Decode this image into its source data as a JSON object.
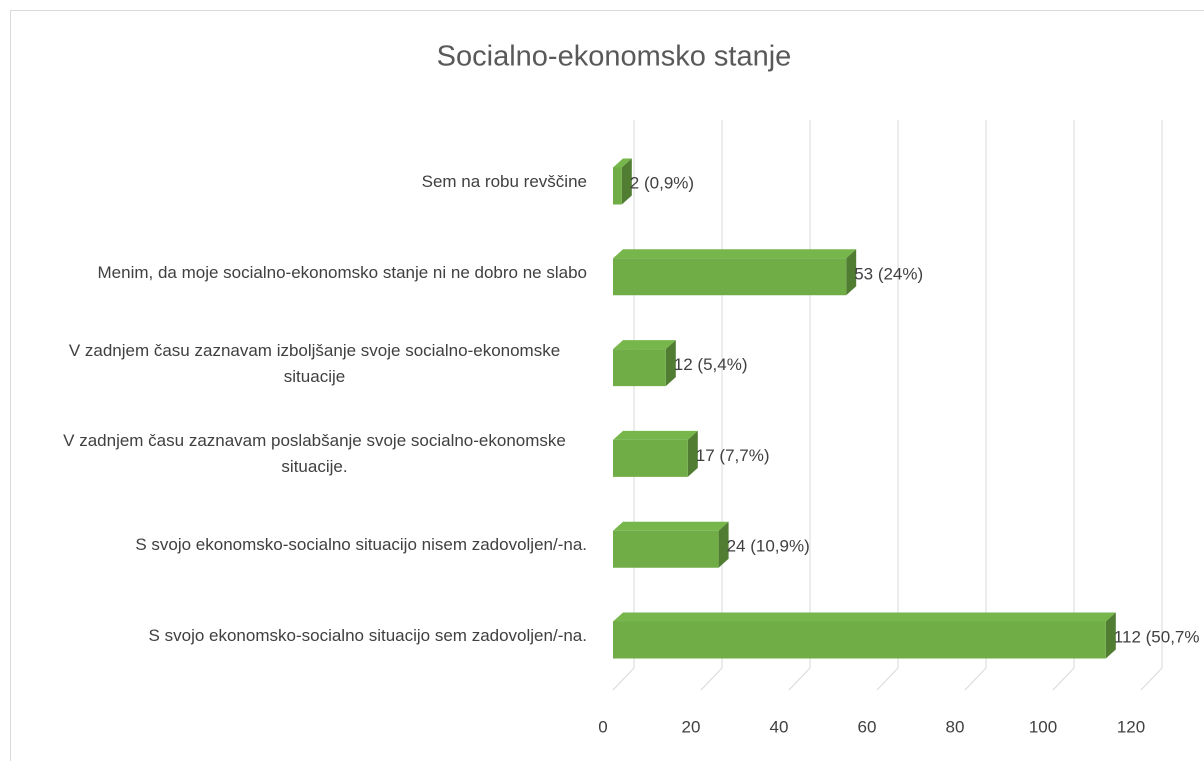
{
  "chart_data": {
    "type": "bar3d",
    "title": "Socialno-ekonomsko stanje",
    "categories": [
      "Sem na robu revščine",
      "Menim, da moje socialno-ekonomsko stanje ni ne dobro ne slabo",
      "V zadnjem času zaznavam izboljšanje svoje socialno-ekonomske situacije",
      "V zadnjem času zaznavam poslabšanje svoje socialno-ekonomske situacije.",
      "S svojo ekonomsko-socialno situacijo nisem zadovoljen/-na.",
      "S svojo ekonomsko-socialno situacijo sem zadovoljen/-na."
    ],
    "values": [
      2,
      53,
      12,
      17,
      24,
      112
    ],
    "value_labels": [
      "2 (0,9%)",
      "53 (24%)",
      "12 (5,4%)",
      "17 (7,7%)",
      "24 (10,9%)",
      "112 (50,7%"
    ],
    "color": "#70ad47",
    "xlim": [
      0,
      120
    ],
    "xticks": [
      0,
      20,
      40,
      60,
      80,
      100,
      120
    ],
    "grid": true
  }
}
